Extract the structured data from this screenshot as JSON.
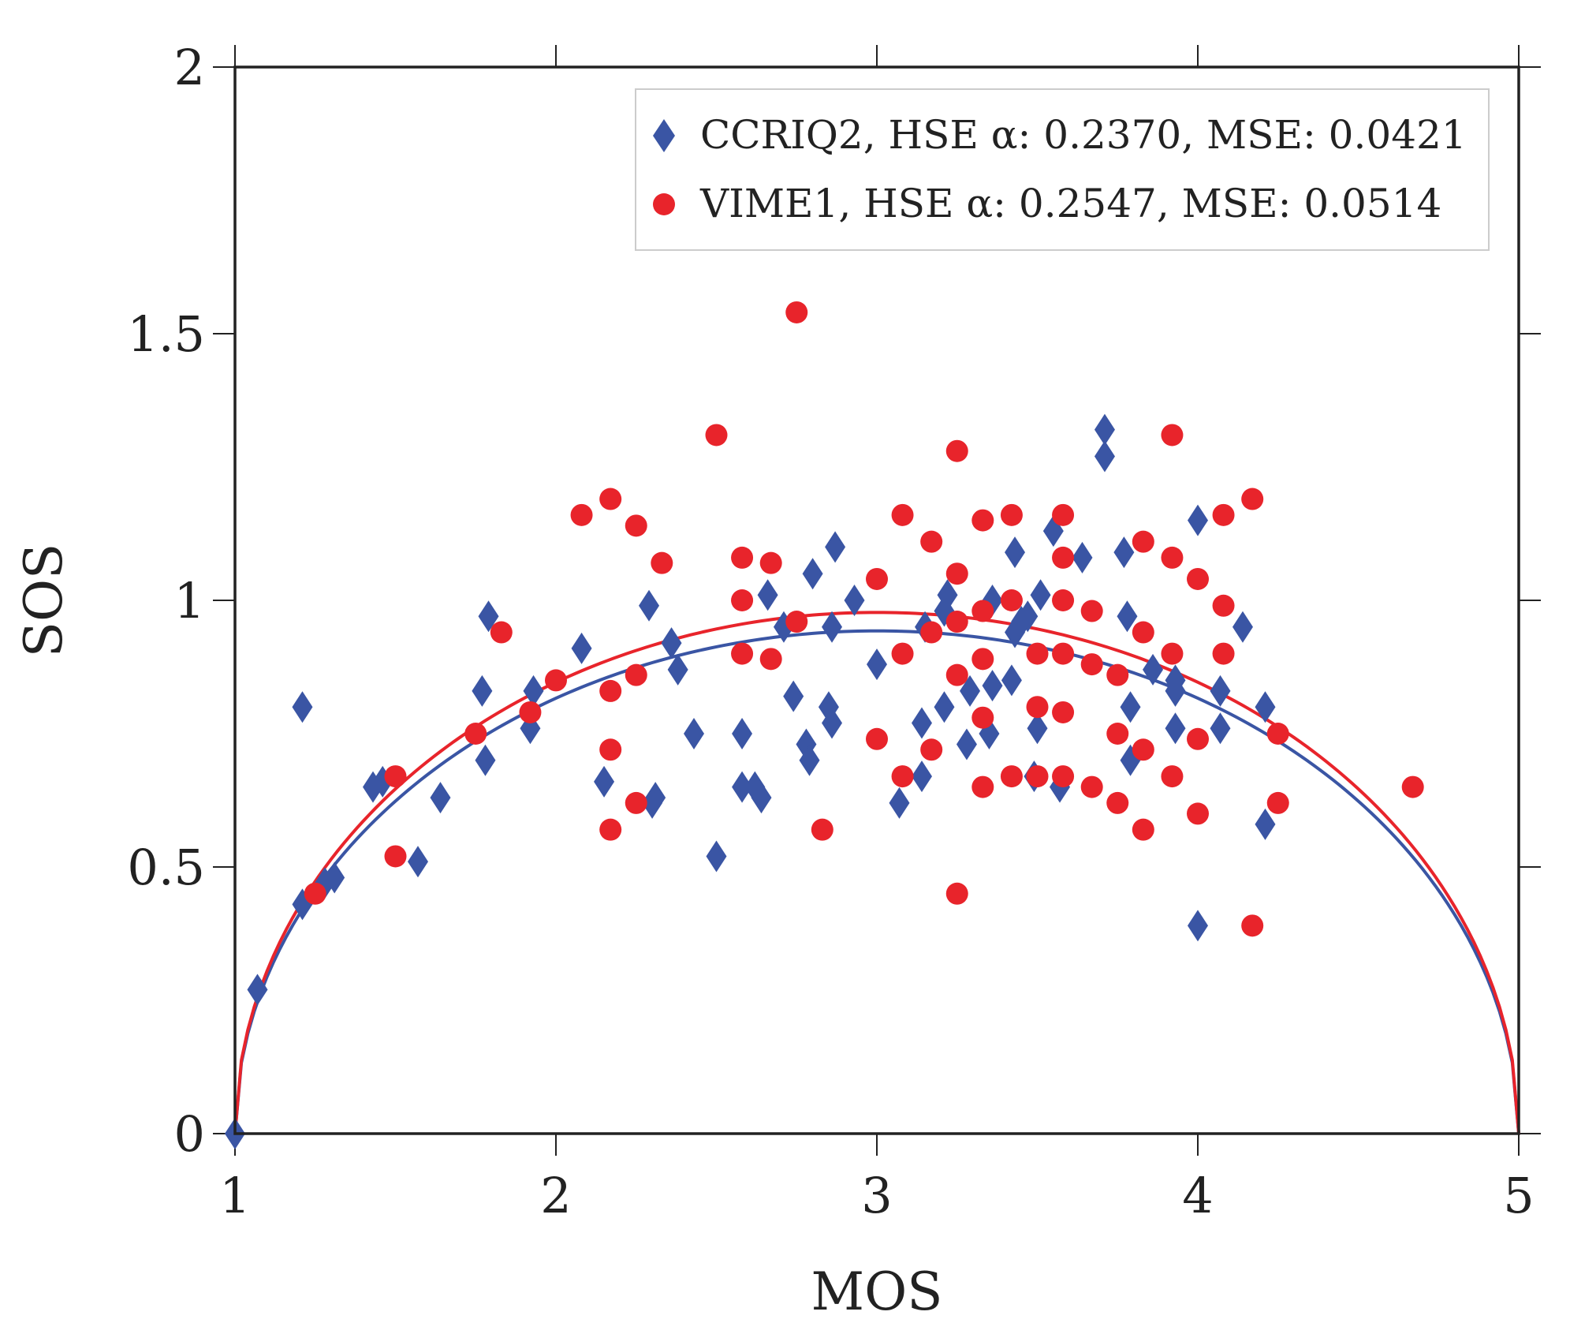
{
  "chart_data": {
    "type": "scatter",
    "xlabel": "MOS",
    "ylabel": "SOS",
    "xlim": [
      1,
      5
    ],
    "ylim": [
      0,
      2
    ],
    "xticks": [
      "1",
      "2",
      "3",
      "4",
      "5"
    ],
    "yticks": [
      "0",
      "0.5",
      "1",
      "1.5",
      "2"
    ],
    "grid": false,
    "legend_position": "top-right",
    "series": [
      {
        "name": "CCRIQ2",
        "legend_text": "CCRIQ2, HSE α: 0.2370, MSE: 0.0421",
        "marker": "diamond",
        "color": "#3a55a4",
        "alpha": 0.237,
        "points": [
          [
            1.0,
            0.0
          ],
          [
            1.07,
            0.27
          ],
          [
            1.21,
            0.8
          ],
          [
            1.21,
            0.43
          ],
          [
            1.28,
            0.47
          ],
          [
            1.31,
            0.48
          ],
          [
            1.43,
            0.65
          ],
          [
            1.46,
            0.66
          ],
          [
            1.57,
            0.51
          ],
          [
            1.64,
            0.63
          ],
          [
            1.77,
            0.83
          ],
          [
            1.78,
            0.7
          ],
          [
            1.79,
            0.97
          ],
          [
            1.92,
            0.76
          ],
          [
            1.93,
            0.83
          ],
          [
            2.08,
            0.91
          ],
          [
            2.15,
            0.66
          ],
          [
            2.29,
            0.99
          ],
          [
            2.3,
            0.62
          ],
          [
            2.31,
            0.63
          ],
          [
            2.36,
            0.92
          ],
          [
            2.38,
            0.87
          ],
          [
            2.43,
            0.75
          ],
          [
            2.5,
            0.52
          ],
          [
            2.58,
            0.75
          ],
          [
            2.58,
            0.65
          ],
          [
            2.62,
            0.65
          ],
          [
            2.64,
            0.63
          ],
          [
            2.66,
            1.01
          ],
          [
            2.71,
            0.95
          ],
          [
            2.74,
            0.82
          ],
          [
            2.78,
            0.73
          ],
          [
            2.79,
            0.7
          ],
          [
            2.8,
            1.05
          ],
          [
            2.85,
            0.8
          ],
          [
            2.86,
            0.77
          ],
          [
            2.86,
            0.95
          ],
          [
            2.87,
            1.1
          ],
          [
            2.93,
            1.0
          ],
          [
            3.0,
            0.88
          ],
          [
            3.07,
            0.62
          ],
          [
            3.14,
            0.67
          ],
          [
            3.14,
            0.77
          ],
          [
            3.15,
            0.95
          ],
          [
            3.21,
            0.8
          ],
          [
            3.21,
            0.98
          ],
          [
            3.22,
            1.01
          ],
          [
            3.28,
            0.73
          ],
          [
            3.29,
            0.83
          ],
          [
            3.35,
            0.75
          ],
          [
            3.36,
            0.84
          ],
          [
            3.36,
            1.0
          ],
          [
            3.42,
            0.85
          ],
          [
            3.43,
            0.94
          ],
          [
            3.43,
            1.09
          ],
          [
            3.45,
            0.96
          ],
          [
            3.47,
            0.97
          ],
          [
            3.49,
            0.67
          ],
          [
            3.5,
            0.76
          ],
          [
            3.51,
            1.01
          ],
          [
            3.55,
            1.13
          ],
          [
            3.57,
            0.65
          ],
          [
            3.64,
            1.08
          ],
          [
            3.71,
            1.32
          ],
          [
            3.71,
            1.27
          ],
          [
            3.77,
            1.09
          ],
          [
            3.78,
            0.97
          ],
          [
            3.79,
            0.8
          ],
          [
            3.79,
            0.7
          ],
          [
            3.86,
            0.87
          ],
          [
            3.93,
            0.85
          ],
          [
            3.93,
            0.76
          ],
          [
            3.93,
            0.83
          ],
          [
            4.0,
            0.39
          ],
          [
            4.0,
            1.15
          ],
          [
            4.07,
            0.83
          ],
          [
            4.07,
            0.76
          ],
          [
            4.14,
            0.95
          ],
          [
            4.21,
            0.58
          ],
          [
            4.21,
            0.8
          ]
        ]
      },
      {
        "name": "VIME1",
        "legend_text": "VIME1, HSE α: 0.2547, MSE: 0.0514",
        "marker": "circle",
        "color": "#e8242b",
        "alpha": 0.2547,
        "points": [
          [
            1.25,
            0.45
          ],
          [
            1.5,
            0.67
          ],
          [
            1.5,
            0.52
          ],
          [
            1.75,
            0.75
          ],
          [
            1.83,
            0.94
          ],
          [
            1.92,
            0.79
          ],
          [
            2.0,
            0.85
          ],
          [
            2.08,
            1.16
          ],
          [
            2.17,
            1.19
          ],
          [
            2.17,
            0.83
          ],
          [
            2.17,
            0.72
          ],
          [
            2.17,
            0.57
          ],
          [
            2.25,
            1.14
          ],
          [
            2.25,
            0.86
          ],
          [
            2.25,
            0.62
          ],
          [
            2.33,
            1.07
          ],
          [
            2.5,
            1.31
          ],
          [
            2.58,
            1.08
          ],
          [
            2.58,
            1.0
          ],
          [
            2.58,
            0.9
          ],
          [
            2.67,
            1.07
          ],
          [
            2.67,
            0.89
          ],
          [
            2.75,
            1.54
          ],
          [
            2.75,
            0.96
          ],
          [
            2.83,
            0.57
          ],
          [
            3.0,
            1.04
          ],
          [
            3.0,
            0.74
          ],
          [
            3.08,
            1.16
          ],
          [
            3.08,
            0.9
          ],
          [
            3.08,
            0.67
          ],
          [
            3.17,
            1.11
          ],
          [
            3.17,
            0.94
          ],
          [
            3.17,
            0.72
          ],
          [
            3.25,
            1.28
          ],
          [
            3.25,
            1.05
          ],
          [
            3.25,
            0.96
          ],
          [
            3.25,
            0.86
          ],
          [
            3.25,
            0.45
          ],
          [
            3.33,
            1.15
          ],
          [
            3.33,
            0.98
          ],
          [
            3.33,
            0.89
          ],
          [
            3.33,
            0.78
          ],
          [
            3.33,
            0.65
          ],
          [
            3.42,
            1.16
          ],
          [
            3.42,
            1.0
          ],
          [
            3.42,
            0.67
          ],
          [
            3.5,
            0.9
          ],
          [
            3.5,
            0.8
          ],
          [
            3.5,
            0.67
          ],
          [
            3.58,
            1.16
          ],
          [
            3.58,
            1.08
          ],
          [
            3.58,
            1.0
          ],
          [
            3.58,
            0.9
          ],
          [
            3.58,
            0.79
          ],
          [
            3.58,
            0.67
          ],
          [
            3.67,
            0.98
          ],
          [
            3.67,
            0.88
          ],
          [
            3.67,
            0.65
          ],
          [
            3.75,
            0.86
          ],
          [
            3.75,
            0.75
          ],
          [
            3.75,
            0.62
          ],
          [
            3.83,
            1.11
          ],
          [
            3.83,
            0.94
          ],
          [
            3.83,
            0.72
          ],
          [
            3.83,
            0.57
          ],
          [
            3.92,
            1.31
          ],
          [
            3.92,
            1.08
          ],
          [
            3.92,
            0.9
          ],
          [
            3.92,
            0.67
          ],
          [
            4.0,
            1.04
          ],
          [
            4.0,
            0.74
          ],
          [
            4.0,
            0.6
          ],
          [
            4.08,
            1.16
          ],
          [
            4.08,
            0.99
          ],
          [
            4.08,
            0.9
          ],
          [
            4.17,
            1.19
          ],
          [
            4.17,
            0.39
          ],
          [
            4.25,
            0.75
          ],
          [
            4.25,
            0.62
          ],
          [
            4.67,
            0.65
          ]
        ]
      }
    ]
  }
}
